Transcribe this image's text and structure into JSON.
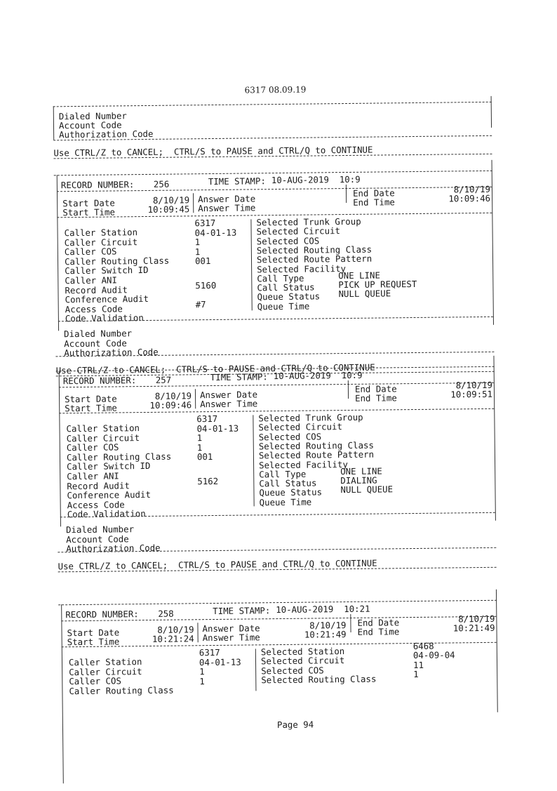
{
  "header": "6317 08.09.19",
  "top_block": {
    "fields": [
      "Dialed Number",
      "Account Code",
      "Authorization Code"
    ]
  },
  "control_hint": "Use CTRL/Z to CANCEL;  CTRL/S to PAUSE and CTRL/Q to CONTINUE",
  "labels": {
    "record_number": "RECORD NUMBER:",
    "time_stamp": "TIME STAMP:",
    "start_date": "Start Date",
    "start_time": "Start Time",
    "answer_date": "Answer Date",
    "answer_time": "Answer Time",
    "end_date": "End Date",
    "end_time": "End Time",
    "dialed": [
      "Dialed Number",
      "Account Code",
      "Authorization Code"
    ]
  },
  "records": [
    {
      "number": "256",
      "time_stamp": "10-AUG-2019  10:9",
      "start_date": "8/10/19",
      "start_time": "10:09:45",
      "answer_date": "",
      "answer_time": "",
      "end_date": "8/10/19",
      "end_time": "10:09:46",
      "caller": [
        [
          "Caller Station",
          "6317"
        ],
        [
          "Caller Circuit",
          "04-01-13"
        ],
        [
          "Caller COS",
          "1"
        ],
        [
          "Caller Routing Class",
          "1"
        ],
        [
          "Caller Switch ID",
          "001"
        ],
        [
          "Caller ANI",
          ""
        ],
        [
          "Record Audit",
          "5160"
        ],
        [
          "Conference Audit",
          ""
        ],
        [
          "Access Code",
          "#7"
        ],
        [
          "Code Validation",
          ""
        ]
      ],
      "selected": [
        [
          "Selected Trunk Group",
          ""
        ],
        [
          "Selected Circuit",
          ""
        ],
        [
          "Selected COS",
          ""
        ],
        [
          "Selected Routing Class",
          ""
        ],
        [
          "Selected Route Pattern",
          ""
        ],
        [
          "Selected Facility",
          ""
        ],
        [
          "Call Type",
          "ONE LINE"
        ],
        [
          "Call Status",
          "PICK UP REQUEST"
        ],
        [
          "Queue Status",
          "NULL QUEUE"
        ],
        [
          "Queue Time",
          ""
        ]
      ]
    },
    {
      "number": "257",
      "time_stamp": "10-AUG-2019  10:9",
      "start_date": "8/10/19",
      "start_time": "10:09:46",
      "answer_date": "",
      "answer_time": "",
      "end_date": "8/10/19",
      "end_time": "10:09:51",
      "caller": [
        [
          "Caller Station",
          "6317"
        ],
        [
          "Caller Circuit",
          "04-01-13"
        ],
        [
          "Caller COS",
          "1"
        ],
        [
          "Caller Routing Class",
          "1"
        ],
        [
          "Caller Switch ID",
          "001"
        ],
        [
          "Caller ANI",
          ""
        ],
        [
          "Record Audit",
          "5162"
        ],
        [
          "Conference Audit",
          ""
        ],
        [
          "Access Code",
          ""
        ],
        [
          "Code Validation",
          ""
        ]
      ],
      "selected": [
        [
          "Selected Trunk Group",
          ""
        ],
        [
          "Selected Circuit",
          ""
        ],
        [
          "Selected COS",
          ""
        ],
        [
          "Selected Routing Class",
          ""
        ],
        [
          "Selected Route Pattern",
          ""
        ],
        [
          "Selected Facility",
          ""
        ],
        [
          "Call Type",
          "ONE LINE"
        ],
        [
          "Call Status",
          "DIALING"
        ],
        [
          "Queue Status",
          "NULL QUEUE"
        ],
        [
          "Queue Time",
          ""
        ]
      ]
    },
    {
      "number": "258",
      "time_stamp": "10-AUG-2019  10:21",
      "start_date": "8/10/19",
      "start_time": "10:21:24",
      "answer_date": "8/10/19",
      "answer_time": "10:21:49",
      "end_date": "8/10/19",
      "end_time": "10:21:49",
      "caller": [
        [
          "Caller Station",
          "6317"
        ],
        [
          "Caller Circuit",
          "04-01-13"
        ],
        [
          "Caller COS",
          "1"
        ],
        [
          "Caller Routing Class",
          "1"
        ]
      ],
      "selected": [
        [
          "Selected Station",
          "6468"
        ],
        [
          "Selected Circuit",
          "04-09-04"
        ],
        [
          "Selected COS",
          "11"
        ],
        [
          "Selected Routing Class",
          "1"
        ]
      ]
    }
  ],
  "footer": "Page 94"
}
